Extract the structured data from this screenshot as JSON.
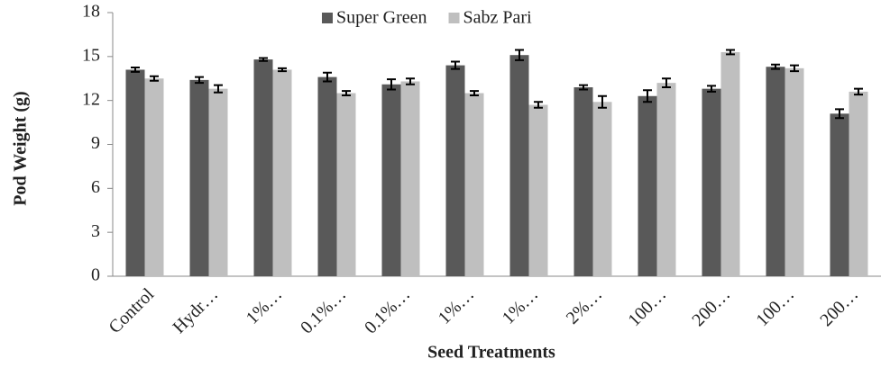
{
  "chart_data": {
    "type": "bar",
    "xlabel": "Seed Treatments",
    "ylabel": "Pod Weight (g)",
    "categories": [
      "Control",
      "Hydr…",
      "1%…",
      "0.1%…",
      "0.1%…",
      "1%…",
      "1%…",
      "2%…",
      "100…",
      "200…",
      "100…",
      "200…"
    ],
    "series": [
      {
        "name": "Super Green",
        "color": "#595959",
        "values": [
          14.1,
          13.4,
          14.8,
          13.6,
          13.1,
          14.4,
          15.1,
          12.9,
          12.3,
          12.8,
          14.3,
          11.1
        ],
        "errors": [
          0.15,
          0.2,
          0.1,
          0.3,
          0.35,
          0.25,
          0.35,
          0.15,
          0.4,
          0.2,
          0.15,
          0.3
        ]
      },
      {
        "name": "Sabz Pari",
        "color": "#bfbfbf",
        "values": [
          13.5,
          12.8,
          14.1,
          12.5,
          13.3,
          12.5,
          11.7,
          11.9,
          13.2,
          15.3,
          14.2,
          12.6
        ],
        "errors": [
          0.15,
          0.25,
          0.1,
          0.15,
          0.2,
          0.15,
          0.2,
          0.4,
          0.3,
          0.15,
          0.2,
          0.2
        ]
      }
    ],
    "ylim": [
      0,
      18
    ],
    "yticks": [
      0,
      3,
      6,
      9,
      12,
      15,
      18
    ],
    "legend": "top"
  }
}
